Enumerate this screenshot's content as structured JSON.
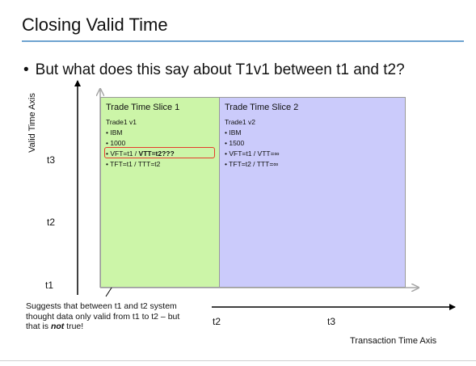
{
  "slide": {
    "title": "Closing Valid Time",
    "bullet": "But what does this say about T1v1 between t1 and t2?"
  },
  "diagram": {
    "valid_axis_label": "Valid Time Axis",
    "transaction_axis_label": "Transaction Time Axis",
    "valid_ticks": {
      "t1": "t1",
      "t2": "t2",
      "t3": "t3"
    },
    "transaction_ticks": {
      "t2": "t2",
      "t3": "t3"
    },
    "slices": [
      {
        "title": "Trade Time Slice 1",
        "items": [
          "Trade1 v1",
          "• IBM",
          "• 1000",
          "• VFT=t1 / ",
          "• TFT=t1 / TTT=t2"
        ],
        "highlight_bold": "VTT=t2???",
        "fill": "#ccf5a8"
      },
      {
        "title": "Trade Time Slice 2",
        "items": [
          "Trade1 v2",
          "• IBM",
          "• 1500",
          "• VFT=t1 / VTT=∞",
          "• TFT=t2 / TTT=∞"
        ],
        "fill": "#cbcbfb"
      }
    ],
    "highlight_color": "#e53b2c",
    "note": {
      "text": "Suggests that between t1 and t2 system thought data only valid from t1 to t2 – but that is ",
      "emphasis": "not",
      "tail": " true!"
    }
  },
  "colors": {
    "title_rule": "#6ea3d0"
  }
}
